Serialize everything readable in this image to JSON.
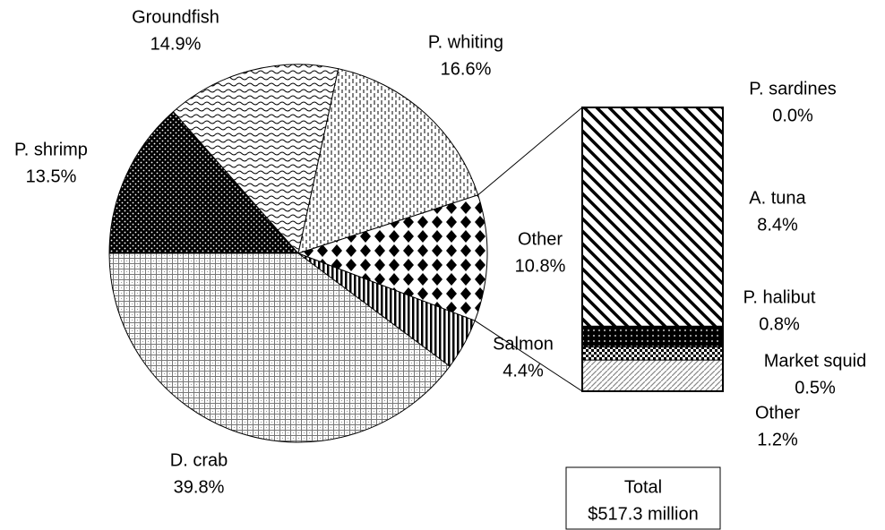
{
  "chart_data": [
    {
      "type": "pie",
      "categories": [
        "P. shrimp",
        "Groundfish",
        "P. whiting",
        "Other",
        "Salmon",
        "D. crab"
      ],
      "values": [
        13.5,
        14.9,
        16.6,
        10.8,
        4.4,
        39.8
      ],
      "value_labels": [
        "13.5%",
        "14.9%",
        "16.6%",
        "10.8%",
        "4.4%",
        "39.8%"
      ],
      "annotations": [
        "Total",
        "$517.3 million"
      ]
    },
    {
      "type": "bar",
      "stacked": true,
      "categories": [
        "P. sardines",
        "A. tuna",
        "P. halibut",
        "Market squid",
        "Other"
      ],
      "values": [
        0.0,
        8.4,
        0.8,
        0.5,
        1.2
      ],
      "value_labels": [
        "0.0%",
        "8.4%",
        "0.8%",
        "0.5%",
        "1.2%"
      ]
    }
  ]
}
